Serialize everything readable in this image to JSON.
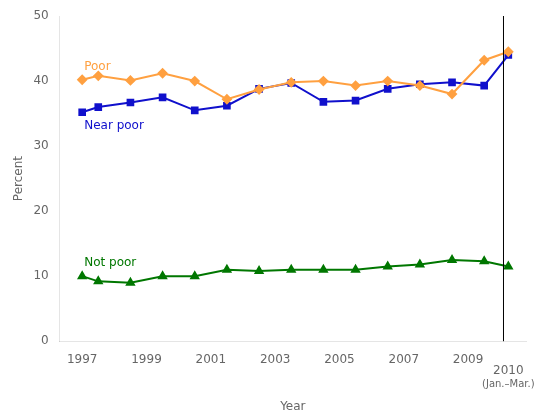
{
  "chart_data": {
    "type": "line",
    "xlabel": "Year",
    "ylabel": "Percent",
    "xlim": [
      1996.3,
      2010.8
    ],
    "xticks": [
      1997,
      1999,
      2001,
      2003,
      2005,
      2007,
      2009
    ],
    "ylim": [
      0,
      50
    ],
    "yticks": [
      0,
      10,
      20,
      30,
      40,
      50
    ],
    "grid": false,
    "series": [
      {
        "name": "Poor",
        "color": "#FFA040",
        "marker": "diamond",
        "x": [
          1997,
          1997.5,
          1998.5,
          1999.5,
          2000.5,
          2001.5,
          2002.5,
          2003.5,
          2004.5,
          2005.5,
          2006.5,
          2007.5,
          2008.5,
          2009.5,
          2010.25
        ],
        "values": [
          40.2,
          40.8,
          40.1,
          41.2,
          40.0,
          37.2,
          38.7,
          39.8,
          40.0,
          39.3,
          40.0,
          39.3,
          38.0,
          43.2,
          44.5
        ]
      },
      {
        "name": "Near poor",
        "color": "#1010CC",
        "marker": "square",
        "x": [
          1997,
          1997.5,
          1998.5,
          1999.5,
          2000.5,
          2001.5,
          2002.5,
          2003.5,
          2004.5,
          2005.5,
          2006.5,
          2007.5,
          2008.5,
          2009.5,
          2010.25
        ],
        "values": [
          35.2,
          36.0,
          36.7,
          37.5,
          35.5,
          36.2,
          38.8,
          39.7,
          36.8,
          37.0,
          38.8,
          39.5,
          39.8,
          39.3,
          44.0
        ]
      },
      {
        "name": "Not poor",
        "color": "#007700",
        "marker": "triangle",
        "x": [
          1997,
          1997.5,
          1998.5,
          1999.5,
          2000.5,
          2001.5,
          2002.5,
          2003.5,
          2004.5,
          2005.5,
          2006.5,
          2007.5,
          2008.5,
          2009.5,
          2010.25
        ],
        "values": [
          10.0,
          9.2,
          9.0,
          10.0,
          10.0,
          11.0,
          10.8,
          11.0,
          11.0,
          11.0,
          11.5,
          11.8,
          12.5,
          12.3,
          11.5
        ]
      }
    ],
    "vlines": [
      2010.1
    ],
    "annotations": [
      {
        "text": "2010",
        "x": 2010.25
      },
      {
        "text": "(Jan.–Mar.)",
        "x": 2010.25
      }
    ]
  }
}
